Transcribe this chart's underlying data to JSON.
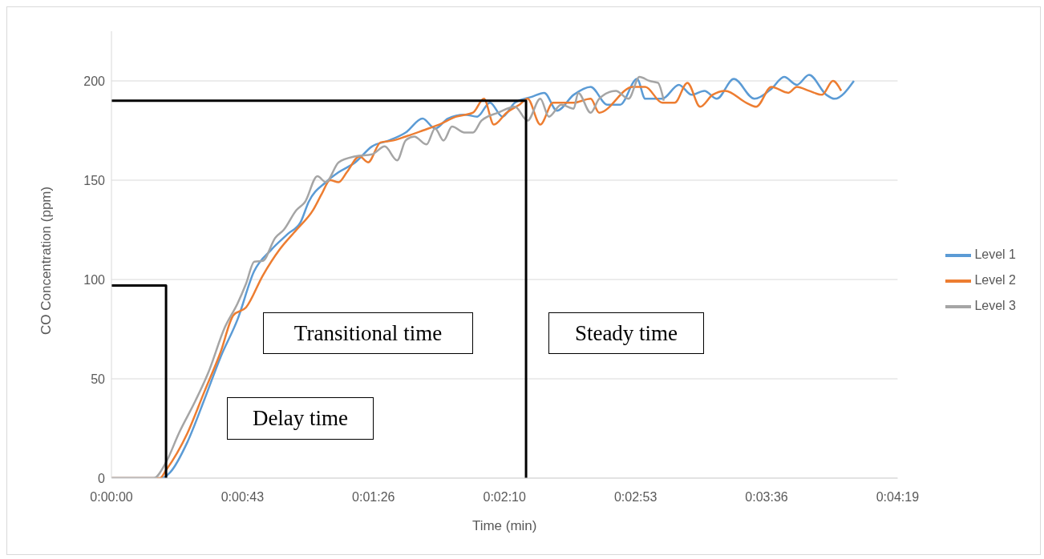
{
  "chart_data": {
    "type": "line",
    "xlabel": "Time (min)",
    "ylabel": "CO Concentration (ppm)",
    "xlim": [
      0,
      259.2
    ],
    "ylim": [
      0,
      225
    ],
    "xticks": [
      {
        "value": 0,
        "label": "0:00:00"
      },
      {
        "value": 43.2,
        "label": "0:00:43"
      },
      {
        "value": 86.4,
        "label": "0:01:26"
      },
      {
        "value": 129.6,
        "label": "0:02:10"
      },
      {
        "value": 172.8,
        "label": "0:02:53"
      },
      {
        "value": 216,
        "label": "0:03:36"
      },
      {
        "value": 259.2,
        "label": "0:04:19"
      }
    ],
    "yticks": [
      0,
      50,
      100,
      150,
      200
    ],
    "grid": "y",
    "legend": "right",
    "marker": "none",
    "line_style": "solid",
    "annotations": [
      "Transitional time",
      "Steady time",
      "Delay time"
    ],
    "series": [
      {
        "name": "Level 1",
        "color": "#5b9bd5",
        "x": [
          0,
          16.6,
          19.4,
          25,
          30.5,
          36,
          41.6,
          47,
          52.7,
          58.2,
          62.4,
          65,
          70.7,
          74.9,
          80.4,
          85.9,
          91.5,
          97,
          102.6,
          106.7,
          110.9,
          116.4,
          120.6,
          124.8,
          128.9,
          133,
          138.6,
          142.7,
          146.9,
          152.4,
          158,
          163.5,
          167.7,
          173.3,
          176,
          181.6,
          187.1,
          191.3,
          195.5,
          199.6,
          205.2,
          212,
          217.6,
          221.8,
          226,
          230,
          235.7,
          238.4,
          244.8
        ],
        "values": [
          0,
          0,
          3,
          18,
          39,
          61,
          80,
          104,
          115,
          123,
          129,
          139,
          149,
          154,
          159,
          167,
          170,
          174,
          181,
          176,
          181,
          183,
          182,
          189,
          182,
          189,
          192,
          194,
          185,
          193,
          197,
          188,
          188,
          201,
          191,
          191,
          198,
          193,
          195,
          191,
          201,
          191,
          196,
          202,
          198,
          203,
          193,
          191,
          200
        ]
      },
      {
        "name": "Level 2",
        "color": "#ed7d31",
        "x": [
          0,
          16,
          18,
          25,
          30.5,
          36,
          40.2,
          44.4,
          49.9,
          55.4,
          61,
          66.5,
          69.3,
          72.1,
          74.9,
          77.6,
          81.8,
          84.6,
          88.7,
          92.9,
          97,
          102.6,
          108,
          113.7,
          119.2,
          122.8,
          126.1,
          130.3,
          134.5,
          137.2,
          141.4,
          145.6,
          152.4,
          158,
          160.8,
          171.9,
          176,
          181.6,
          185.7,
          189.9,
          194.1,
          198.2,
          202.4,
          209.3,
          212.6,
          217.6,
          223.2,
          226,
          230,
          234.3,
          237.9,
          240.6
        ],
        "values": [
          0,
          0,
          4,
          22.5,
          43,
          63.5,
          82,
          86,
          102,
          115,
          125,
          135,
          143,
          150,
          149,
          154,
          162,
          159,
          169,
          170,
          172,
          175,
          178,
          182,
          184,
          191,
          178,
          184,
          188,
          191,
          178,
          189,
          189,
          191,
          184,
          197,
          197,
          189,
          189,
          199,
          187,
          193,
          195,
          189,
          187,
          197,
          194,
          197,
          195,
          193,
          200,
          195
        ]
      },
      {
        "name": "Level 3",
        "color": "#a5a5a5",
        "x": [
          0,
          13.9,
          18,
          22.2,
          27.7,
          31.9,
          37.4,
          41.6,
          44.4,
          47.1,
          49.9,
          54,
          56.8,
          61,
          63.8,
          67.9,
          70.7,
          74.9,
          80.4,
          85.9,
          90.1,
          94.2,
          97,
          99.8,
          103.9,
          106.7,
          109.5,
          112.3,
          116.4,
          119.2,
          122,
          127.5,
          133,
          137.2,
          141.4,
          144.2,
          148.3,
          152.4,
          153.9,
          158,
          160.8,
          166.3,
          170.5,
          174.1,
          177.4,
          180.2,
          182.1
        ],
        "values": [
          0,
          0,
          8,
          22.5,
          39,
          53,
          76,
          88,
          98,
          109,
          109.4,
          121,
          125,
          135,
          139,
          152,
          149,
          159,
          162,
          163,
          167,
          160,
          170,
          172,
          168,
          176,
          170,
          177,
          174,
          174,
          180,
          184,
          187,
          180,
          191,
          182,
          188,
          186,
          194,
          184,
          191,
          195,
          191,
          202,
          200,
          199,
          190
        ]
      },
      {
        "type": "line",
        "color": "#000000",
        "x": [
          0,
          18,
          18
        ],
        "values": [
          97,
          97,
          0
        ]
      },
      {
        "type": "line",
        "color": "#000000",
        "x": [
          0,
          136.7,
          136.7
        ],
        "values": [
          190,
          190,
          0
        ]
      }
    ]
  }
}
